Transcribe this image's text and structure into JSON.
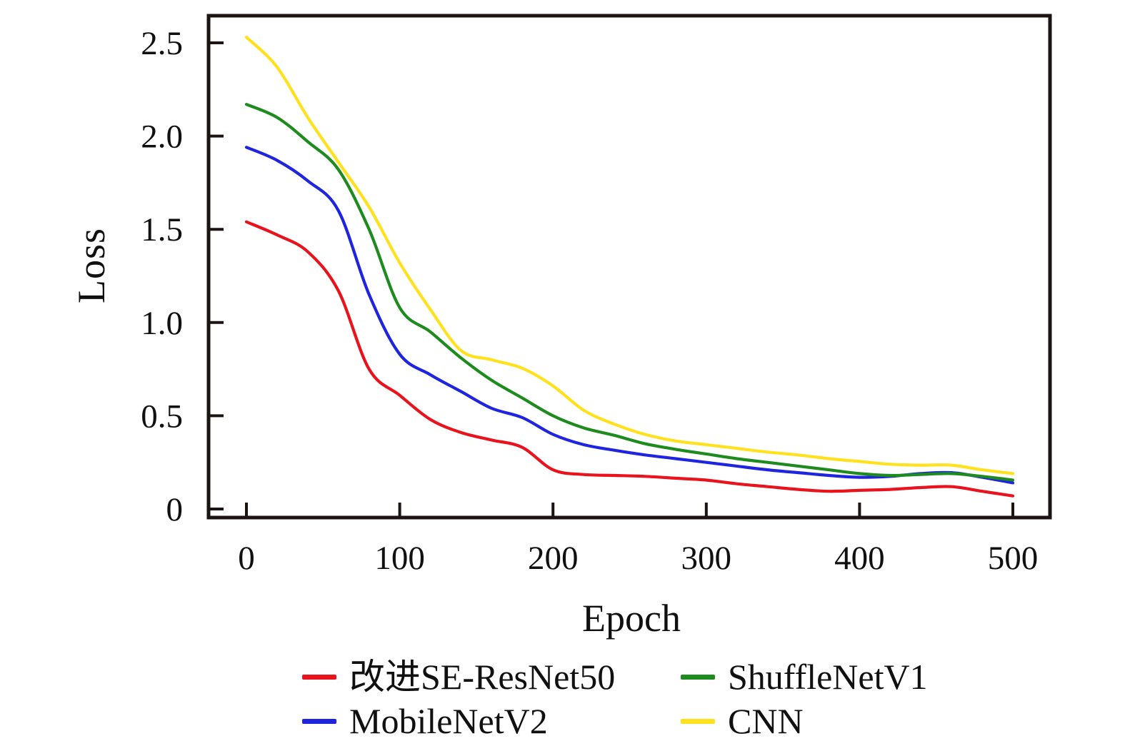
{
  "chart_data": {
    "type": "line",
    "title": "",
    "xlabel": "Epoch",
    "ylabel": "Loss",
    "xlim": [
      -26,
      524
    ],
    "ylim": [
      -0.05,
      2.65
    ],
    "grid": false,
    "legend_position": "bottom",
    "xticks": [
      0,
      100,
      200,
      300,
      400,
      500
    ],
    "xtick_labels": [
      "0",
      "100",
      "200",
      "300",
      "400",
      "500"
    ],
    "yticks": [
      0,
      0.5,
      1.0,
      1.5,
      2.0,
      2.5
    ],
    "ytick_labels": [
      "0",
      "0.5",
      "1.0",
      "1.5",
      "2.0",
      "2.5"
    ],
    "x": [
      0,
      20,
      40,
      60,
      80,
      100,
      120,
      140,
      160,
      180,
      200,
      220,
      240,
      260,
      280,
      300,
      320,
      340,
      360,
      380,
      400,
      420,
      440,
      460,
      480,
      500
    ],
    "series": [
      {
        "id": "se-resnet50",
        "name": "改进SE-ResNet50",
        "color": "#e8131c",
        "values": [
          1.54,
          1.47,
          1.38,
          1.17,
          0.75,
          0.61,
          0.48,
          0.41,
          0.37,
          0.33,
          0.21,
          0.185,
          0.18,
          0.175,
          0.165,
          0.155,
          0.135,
          0.12,
          0.105,
          0.095,
          0.1,
          0.105,
          0.115,
          0.12,
          0.095,
          0.07
        ]
      },
      {
        "id": "mobilenetv2",
        "name": "MobileNetV2",
        "color": "#1f25df",
        "values": [
          1.94,
          1.87,
          1.76,
          1.6,
          1.15,
          0.83,
          0.72,
          0.63,
          0.54,
          0.49,
          0.4,
          0.345,
          0.315,
          0.29,
          0.27,
          0.25,
          0.23,
          0.21,
          0.195,
          0.18,
          0.17,
          0.175,
          0.19,
          0.195,
          0.17,
          0.14
        ]
      },
      {
        "id": "shufflenetv1",
        "name": "ShuffleNetV1",
        "color": "#1e8b1e",
        "values": [
          2.17,
          2.1,
          1.97,
          1.82,
          1.5,
          1.08,
          0.95,
          0.81,
          0.69,
          0.595,
          0.5,
          0.435,
          0.395,
          0.35,
          0.32,
          0.295,
          0.27,
          0.25,
          0.23,
          0.21,
          0.19,
          0.18,
          0.185,
          0.19,
          0.175,
          0.155
        ]
      },
      {
        "id": "cnn",
        "name": "CNN",
        "color": "#ffe11e",
        "values": [
          2.53,
          2.37,
          2.1,
          1.86,
          1.62,
          1.32,
          1.07,
          0.85,
          0.8,
          0.755,
          0.66,
          0.53,
          0.455,
          0.4,
          0.365,
          0.345,
          0.325,
          0.305,
          0.29,
          0.27,
          0.255,
          0.24,
          0.235,
          0.235,
          0.21,
          0.19
        ]
      }
    ]
  },
  "legend": {
    "items": [
      {
        "label": "改进SE-ResNet50",
        "color": "#e8131c"
      },
      {
        "label": "ShuffleNetV1",
        "color": "#1e8b1e"
      },
      {
        "label": "MobileNetV2",
        "color": "#1f25df"
      },
      {
        "label": "CNN",
        "color": "#ffe11e"
      }
    ]
  },
  "style": {
    "axis_color": "#1c1412",
    "text_color": "#101010"
  }
}
